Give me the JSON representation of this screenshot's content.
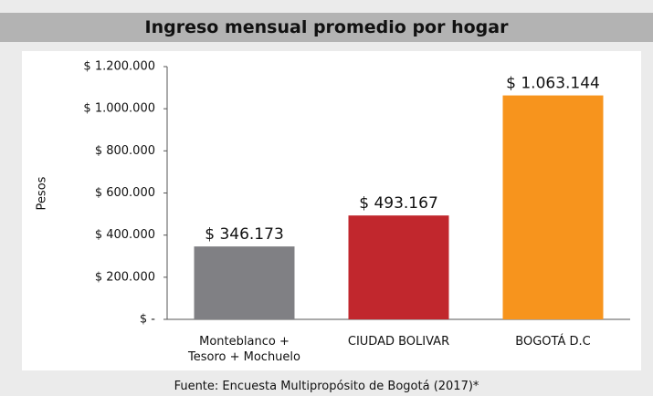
{
  "chart_data": {
    "type": "bar",
    "title": "Ingreso mensual promedio por hogar",
    "y_label": "Pesos",
    "source": "Fuente: Encuesta Multipropósito de Bogotá (2017)*",
    "categories": [
      "Monteblanco + Tesoro + Mochuelo",
      "CIUDAD BOLIVAR",
      "BOGOTÁ D.C"
    ],
    "values": [
      346173,
      493167,
      1063144
    ],
    "value_labels": [
      "$ 346.173",
      "$ 493.167",
      "$ 1.063.144"
    ],
    "colors": [
      "#808084",
      "#c1272d",
      "#f7941d"
    ],
    "ylim": [
      0,
      1200000
    ],
    "yticks": [
      {
        "value": 0,
        "label": "$ -"
      },
      {
        "value": 200000,
        "label": "$ 200.000"
      },
      {
        "value": 400000,
        "label": "$ 400.000"
      },
      {
        "value": 600000,
        "label": "$ 600.000"
      },
      {
        "value": 800000,
        "label": "$ 800.000"
      },
      {
        "value": 1000000,
        "label": "$ 1.000.000"
      },
      {
        "value": 1200000,
        "label": "$ 1.200.000"
      }
    ],
    "grid": false
  }
}
